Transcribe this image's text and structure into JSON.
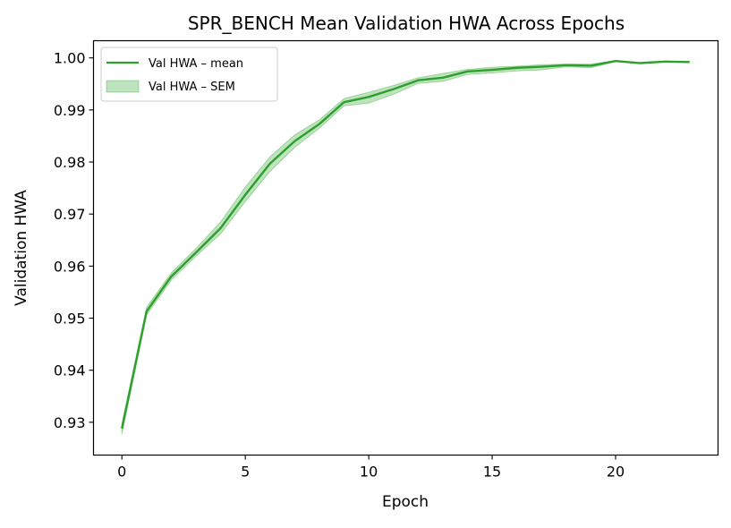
{
  "chart_data": {
    "type": "line",
    "title": "SPR_BENCH Mean Validation HWA Across Epochs",
    "xlabel": "Epoch",
    "ylabel": "Validation HWA",
    "xlim": [
      -1.15,
      24.15
    ],
    "ylim": [
      0.9237,
      1.0033
    ],
    "xticks": [
      0,
      5,
      10,
      15,
      20
    ],
    "yticks": [
      0.93,
      0.94,
      0.95,
      0.96,
      0.97,
      0.98,
      0.99,
      1.0
    ],
    "xtick_labels": [
      "0",
      "5",
      "10",
      "15",
      "20"
    ],
    "ytick_labels": [
      "0.93",
      "0.94",
      "0.95",
      "0.96",
      "0.97",
      "0.98",
      "0.99",
      "1.00"
    ],
    "grid": false,
    "legend_position": "top-left",
    "x": [
      0,
      1,
      2,
      3,
      4,
      5,
      6,
      7,
      8,
      9,
      10,
      11,
      12,
      13,
      14,
      15,
      16,
      17,
      18,
      19,
      20,
      21,
      22,
      23
    ],
    "series": [
      {
        "name": "Val HWA – mean",
        "color": "#2ca02c",
        "values": [
          0.9288,
          0.9513,
          0.958,
          0.9626,
          0.9673,
          0.9737,
          0.9797,
          0.984,
          0.9873,
          0.9915,
          0.9925,
          0.994,
          0.9957,
          0.9962,
          0.9974,
          0.9977,
          0.9981,
          0.9983,
          0.9986,
          0.9985,
          0.9994,
          0.999,
          0.9993,
          0.9992
        ]
      },
      {
        "name": "Val HWA – SEM",
        "color": "#2ca02c",
        "lower": [
          0.9277,
          0.9506,
          0.9573,
          0.9619,
          0.9662,
          0.9724,
          0.9782,
          0.9828,
          0.9865,
          0.9908,
          0.9913,
          0.993,
          0.9951,
          0.9955,
          0.9968,
          0.9971,
          0.9975,
          0.9977,
          0.9983,
          0.9981,
          0.9993,
          0.999,
          0.9993,
          0.9992
        ],
        "upper": [
          0.9297,
          0.9521,
          0.9587,
          0.9634,
          0.9685,
          0.9752,
          0.981,
          0.9852,
          0.9881,
          0.9922,
          0.9934,
          0.9947,
          0.9962,
          0.997,
          0.9978,
          0.9982,
          0.9984,
          0.9987,
          0.9988,
          0.9988,
          0.9995,
          0.999,
          0.9993,
          0.9992
        ]
      }
    ]
  }
}
